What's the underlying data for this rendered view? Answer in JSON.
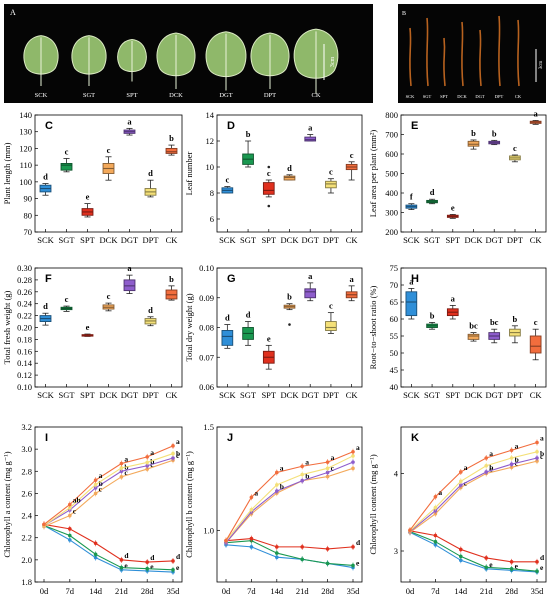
{
  "photos": {
    "A": {
      "letter": "A",
      "labels": [
        "SCK",
        "SGT",
        "SPT",
        "DCK",
        "DGT",
        "DPT",
        "CK"
      ],
      "scale": "3cm"
    },
    "B": {
      "letter": "B",
      "labels": [
        "SCK",
        "SGT",
        "SPT",
        "DCK",
        "DGT",
        "DPT",
        "CK"
      ],
      "scale": "3cm"
    }
  },
  "treatment_colors": {
    "SCK": "#2f8fd8",
    "SGT": "#1a9850",
    "SPT": "#e0301e",
    "DCK": "#f3a95b",
    "DGT": "#8e5dcc",
    "DPT": "#f4e078",
    "CK": "#f26d3d"
  },
  "chart_data": [
    {
      "id": "C",
      "letter": "C",
      "type": "box",
      "ylabel": "Plant length (mm)",
      "ylim": [
        70,
        140
      ],
      "yticks": [
        70,
        80,
        90,
        100,
        110,
        120,
        130,
        140
      ],
      "ytick_decimals": 0,
      "categories": [
        "SCK",
        "SGT",
        "SPT",
        "DCK",
        "DGT",
        "DPT",
        "CK"
      ],
      "boxes": [
        {
          "q1": 94,
          "med": 96,
          "q3": 98,
          "min": 92,
          "max": 99,
          "letter": "d"
        },
        {
          "q1": 107,
          "med": 110,
          "q3": 111,
          "min": 106,
          "max": 114,
          "letter": "c"
        },
        {
          "q1": 80,
          "med": 82,
          "q3": 84,
          "min": 79,
          "max": 87,
          "letter": "e"
        },
        {
          "q1": 105,
          "med": 108,
          "q3": 111,
          "min": 101,
          "max": 115,
          "letter": "c"
        },
        {
          "q1": 129,
          "med": 130,
          "q3": 131,
          "min": 128,
          "max": 132,
          "letter": "a"
        },
        {
          "q1": 92,
          "med": 94,
          "q3": 96,
          "min": 91,
          "max": 101,
          "letter": "d"
        },
        {
          "q1": 117,
          "med": 118,
          "q3": 120,
          "min": 116,
          "max": 122,
          "letter": "b"
        }
      ]
    },
    {
      "id": "D",
      "letter": "D",
      "type": "box",
      "ylabel": "Leaf number",
      "ylim": [
        5,
        14
      ],
      "yticks": [
        6,
        8,
        10,
        12,
        14
      ],
      "ytick_decimals": 0,
      "categories": [
        "SCK",
        "SGT",
        "SPT",
        "DCK",
        "DGT",
        "DPT",
        "CK"
      ],
      "boxes": [
        {
          "q1": 8.0,
          "med": 8.2,
          "q3": 8.4,
          "min": 8.0,
          "max": 8.5,
          "letter": "c"
        },
        {
          "q1": 10.2,
          "med": 10.6,
          "q3": 11.0,
          "min": 10.0,
          "max": 12.0,
          "letter": "b"
        },
        {
          "q1": 7.9,
          "med": 8.2,
          "q3": 8.8,
          "min": 7.7,
          "max": 9.0,
          "letter": "c",
          "outliers": [
            7.0,
            10.0
          ]
        },
        {
          "q1": 9.0,
          "med": 9.2,
          "q3": 9.3,
          "min": 9.0,
          "max": 9.4,
          "letter": "d"
        },
        {
          "q1": 12.0,
          "med": 12.1,
          "q3": 12.3,
          "min": 12.0,
          "max": 12.5,
          "letter": "a"
        },
        {
          "q1": 8.4,
          "med": 8.7,
          "q3": 8.9,
          "min": 8.0,
          "max": 9.1,
          "letter": "c"
        },
        {
          "q1": 9.8,
          "med": 10.0,
          "q3": 10.2,
          "min": 9.0,
          "max": 10.4,
          "letter": "c"
        }
      ]
    },
    {
      "id": "E",
      "letter": "E",
      "type": "box",
      "ylabel": "Leaf area per plant (mm²)",
      "ylim": [
        200,
        800
      ],
      "yticks": [
        200,
        300,
        400,
        500,
        600,
        700,
        800
      ],
      "ytick_decimals": 0,
      "categories": [
        "SCK",
        "SGT",
        "SPT",
        "DCK",
        "DGT",
        "DPT",
        "CK"
      ],
      "boxes": [
        {
          "q1": 322,
          "med": 330,
          "q3": 338,
          "min": 315,
          "max": 345,
          "letter": "f"
        },
        {
          "q1": 350,
          "med": 355,
          "q3": 362,
          "min": 345,
          "max": 368,
          "letter": "d"
        },
        {
          "q1": 275,
          "med": 280,
          "q3": 286,
          "min": 270,
          "max": 290,
          "letter": "e"
        },
        {
          "q1": 640,
          "med": 650,
          "q3": 665,
          "min": 625,
          "max": 672,
          "letter": "b"
        },
        {
          "q1": 652,
          "med": 658,
          "q3": 665,
          "min": 648,
          "max": 670,
          "letter": "b"
        },
        {
          "q1": 570,
          "med": 580,
          "q3": 590,
          "min": 560,
          "max": 595,
          "letter": "c"
        },
        {
          "q1": 757,
          "med": 763,
          "q3": 768,
          "min": 752,
          "max": 772,
          "letter": "a"
        }
      ]
    },
    {
      "id": "F",
      "letter": "F",
      "type": "box",
      "ylabel": "Total fresh weight (g)",
      "ylim": [
        0.1,
        0.3
      ],
      "yticks": [
        0.1,
        0.12,
        0.14,
        0.16,
        0.18,
        0.2,
        0.22,
        0.24,
        0.26,
        0.28,
        0.3
      ],
      "ytick_decimals": 2,
      "categories": [
        "SCK",
        "SGT",
        "SPT",
        "DCK",
        "DGT",
        "DPT",
        "CK"
      ],
      "boxes": [
        {
          "q1": 0.21,
          "med": 0.215,
          "q3": 0.22,
          "min": 0.204,
          "max": 0.224,
          "letter": "d"
        },
        {
          "q1": 0.23,
          "med": 0.232,
          "q3": 0.234,
          "min": 0.227,
          "max": 0.236,
          "letter": "c"
        },
        {
          "q1": 0.186,
          "med": 0.187,
          "q3": 0.188,
          "min": 0.185,
          "max": 0.189,
          "letter": "e"
        },
        {
          "q1": 0.231,
          "med": 0.234,
          "q3": 0.238,
          "min": 0.228,
          "max": 0.241,
          "letter": "c"
        },
        {
          "q1": 0.262,
          "med": 0.27,
          "q3": 0.28,
          "min": 0.257,
          "max": 0.288,
          "letter": "a"
        },
        {
          "q1": 0.206,
          "med": 0.211,
          "q3": 0.215,
          "min": 0.203,
          "max": 0.218,
          "letter": "d"
        },
        {
          "q1": 0.248,
          "med": 0.255,
          "q3": 0.263,
          "min": 0.246,
          "max": 0.27,
          "letter": "b"
        }
      ]
    },
    {
      "id": "G",
      "letter": "G",
      "type": "box",
      "ylabel": "Total dry weight (g)",
      "ylim": [
        0.06,
        0.1
      ],
      "yticks": [
        0.06,
        0.07,
        0.08,
        0.09,
        0.1
      ],
      "ytick_decimals": 2,
      "categories": [
        "SCK",
        "SGT",
        "SPT",
        "DCK",
        "DGT",
        "DPT",
        "CK"
      ],
      "boxes": [
        {
          "q1": 0.074,
          "med": 0.077,
          "q3": 0.079,
          "min": 0.073,
          "max": 0.081,
          "letter": "d"
        },
        {
          "q1": 0.076,
          "med": 0.078,
          "q3": 0.08,
          "min": 0.074,
          "max": 0.082,
          "letter": "d"
        },
        {
          "q1": 0.068,
          "med": 0.07,
          "q3": 0.072,
          "min": 0.066,
          "max": 0.074,
          "letter": "e"
        },
        {
          "q1": 0.0865,
          "med": 0.087,
          "q3": 0.0875,
          "min": 0.086,
          "max": 0.088,
          "letter": "b",
          "outliers": [
            0.081
          ]
        },
        {
          "q1": 0.09,
          "med": 0.092,
          "q3": 0.093,
          "min": 0.089,
          "max": 0.095,
          "letter": "a"
        },
        {
          "q1": 0.079,
          "med": 0.08,
          "q3": 0.082,
          "min": 0.078,
          "max": 0.085,
          "letter": "c"
        },
        {
          "q1": 0.09,
          "med": 0.091,
          "q3": 0.092,
          "min": 0.089,
          "max": 0.094,
          "letter": "a"
        }
      ]
    },
    {
      "id": "H",
      "letter": "H",
      "type": "box",
      "ylabel": "Root−to−shoot ratio (%)",
      "ylim": [
        40,
        75
      ],
      "yticks": [
        40,
        45,
        50,
        55,
        60,
        65,
        70,
        75
      ],
      "ytick_decimals": 0,
      "categories": [
        "SCK",
        "SGT",
        "SPT",
        "DCK",
        "DGT",
        "DPT",
        "CK"
      ],
      "boxes": [
        {
          "q1": 61,
          "med": 65,
          "q3": 68,
          "min": 60,
          "max": 69,
          "letter": "a"
        },
        {
          "q1": 57.5,
          "med": 58,
          "q3": 58.5,
          "min": 57,
          "max": 59,
          "letter": "b"
        },
        {
          "q1": 61,
          "med": 62,
          "q3": 63,
          "min": 60,
          "max": 64,
          "letter": "a"
        },
        {
          "q1": 54,
          "med": 55,
          "q3": 55.5,
          "min": 53.5,
          "max": 56,
          "letter": "bc"
        },
        {
          "q1": 54,
          "med": 55,
          "q3": 56,
          "min": 53,
          "max": 57,
          "letter": "bc"
        },
        {
          "q1": 55,
          "med": 56,
          "q3": 57,
          "min": 53,
          "max": 58,
          "letter": "b"
        },
        {
          "q1": 50,
          "med": 52,
          "q3": 55,
          "min": 48,
          "max": 57,
          "letter": "c"
        }
      ]
    },
    {
      "id": "I",
      "letter": "I",
      "type": "line",
      "ylabel": "Chlorophyll a content (mg g⁻¹)",
      "x": [
        "0d",
        "7d",
        "14d",
        "21d",
        "28d",
        "35d"
      ],
      "ylim": [
        1.8,
        3.2
      ],
      "yticks": [
        1.8,
        2.0,
        2.2,
        2.4,
        2.6,
        2.8,
        3.0,
        3.2
      ],
      "ytick_decimals": 1,
      "series": [
        {
          "key": "SCK",
          "values": [
            2.31,
            2.18,
            2.02,
            1.91,
            1.9,
            1.89
          ],
          "letters": [
            "",
            "",
            "",
            "e",
            "e",
            "e"
          ]
        },
        {
          "key": "SGT",
          "values": [
            2.31,
            2.22,
            2.05,
            1.93,
            1.92,
            1.91
          ],
          "letters": [
            "",
            "",
            "",
            "",
            "",
            ""
          ]
        },
        {
          "key": "SPT",
          "values": [
            2.32,
            2.28,
            2.15,
            2.0,
            1.98,
            1.99
          ],
          "letters": [
            "",
            "",
            "",
            "d",
            "d",
            "d"
          ]
        },
        {
          "key": "DCK",
          "values": [
            2.3,
            2.4,
            2.6,
            2.75,
            2.82,
            2.9
          ],
          "letters": [
            "",
            "c",
            "c",
            "c",
            "c",
            "c"
          ]
        },
        {
          "key": "DGT",
          "values": [
            2.31,
            2.45,
            2.65,
            2.8,
            2.85,
            2.92
          ],
          "letters": [
            "",
            "",
            "b",
            "b",
            "b",
            "b"
          ]
        },
        {
          "key": "DPT",
          "values": [
            2.31,
            2.47,
            2.68,
            2.83,
            2.88,
            2.96
          ],
          "letters": [
            "",
            "",
            "",
            "",
            "",
            ""
          ]
        },
        {
          "key": "CK",
          "values": [
            2.32,
            2.5,
            2.72,
            2.87,
            2.93,
            3.03
          ],
          "letters": [
            "",
            "ab",
            "a",
            "a",
            "a",
            "a"
          ]
        }
      ]
    },
    {
      "id": "J",
      "letter": "J",
      "type": "line",
      "ylabel": "Chlorophyll b content (mg g⁻¹)",
      "x": [
        "0d",
        "7d",
        "14d",
        "21d",
        "28d",
        "35d"
      ],
      "ylim": [
        0.75,
        1.5
      ],
      "yticks": [
        1.0,
        1.5
      ],
      "ytick_decimals": 1,
      "series": [
        {
          "key": "SCK",
          "values": [
            0.93,
            0.92,
            0.87,
            0.86,
            0.84,
            0.82
          ],
          "letters": [
            "",
            "",
            "",
            "",
            "",
            "e"
          ]
        },
        {
          "key": "SGT",
          "values": [
            0.94,
            0.95,
            0.89,
            0.86,
            0.84,
            0.83
          ],
          "letters": [
            "",
            "",
            "",
            "",
            "",
            ""
          ]
        },
        {
          "key": "SPT",
          "values": [
            0.95,
            0.96,
            0.92,
            0.92,
            0.91,
            0.92
          ],
          "letters": [
            "",
            "",
            "",
            "",
            "",
            "d"
          ]
        },
        {
          "key": "DCK",
          "values": [
            0.94,
            1.08,
            1.18,
            1.24,
            1.26,
            1.3
          ],
          "letters": [
            "",
            "",
            "",
            "",
            "",
            ""
          ]
        },
        {
          "key": "DGT",
          "values": [
            0.94,
            1.09,
            1.19,
            1.24,
            1.28,
            1.33
          ],
          "letters": [
            "",
            "",
            "b",
            "b",
            "c",
            ""
          ]
        },
        {
          "key": "DPT",
          "values": [
            0.95,
            1.1,
            1.22,
            1.27,
            1.3,
            1.36
          ],
          "letters": [
            "",
            "",
            "",
            "",
            "",
            ""
          ]
        },
        {
          "key": "CK",
          "values": [
            0.95,
            1.16,
            1.28,
            1.31,
            1.33,
            1.38
          ],
          "letters": [
            "",
            "a",
            "a",
            "a",
            "a",
            "a"
          ]
        }
      ]
    },
    {
      "id": "K",
      "letter": "K",
      "type": "line",
      "ylabel": "Chlorophyll content (mg g⁻¹)",
      "x": [
        "0d",
        "7d",
        "14d",
        "21d",
        "28d",
        "35d"
      ],
      "ylim": [
        2.6,
        4.6
      ],
      "yticks": [
        3,
        4
      ],
      "ytick_decimals": 0,
      "series": [
        {
          "key": "SCK",
          "values": [
            3.24,
            3.08,
            2.88,
            2.77,
            2.75,
            2.73
          ],
          "letters": [
            "",
            "",
            "",
            "e",
            "e",
            "e"
          ]
        },
        {
          "key": "SGT",
          "values": [
            3.25,
            3.12,
            2.93,
            2.79,
            2.77,
            2.74
          ],
          "letters": [
            "",
            "",
            "",
            "",
            "",
            ""
          ]
        },
        {
          "key": "SPT",
          "values": [
            3.26,
            3.2,
            3.02,
            2.91,
            2.86,
            2.86
          ],
          "letters": [
            "",
            "",
            "",
            "",
            "",
            "d"
          ]
        },
        {
          "key": "DCK",
          "values": [
            3.24,
            3.48,
            3.82,
            4.0,
            4.08,
            4.16
          ],
          "letters": [
            "",
            "",
            "c",
            "c",
            "c",
            "c"
          ]
        },
        {
          "key": "DGT",
          "values": [
            3.25,
            3.52,
            3.85,
            4.02,
            4.12,
            4.2
          ],
          "letters": [
            "",
            "",
            "",
            "b",
            "b",
            "b"
          ]
        },
        {
          "key": "DPT",
          "values": [
            3.26,
            3.56,
            3.9,
            4.1,
            4.2,
            4.28
          ],
          "letters": [
            "",
            "",
            "",
            "",
            "",
            ""
          ]
        },
        {
          "key": "CK",
          "values": [
            3.27,
            3.7,
            4.02,
            4.2,
            4.3,
            4.4
          ],
          "letters": [
            "",
            "a",
            "a",
            "a",
            "a",
            "a"
          ]
        }
      ]
    }
  ]
}
